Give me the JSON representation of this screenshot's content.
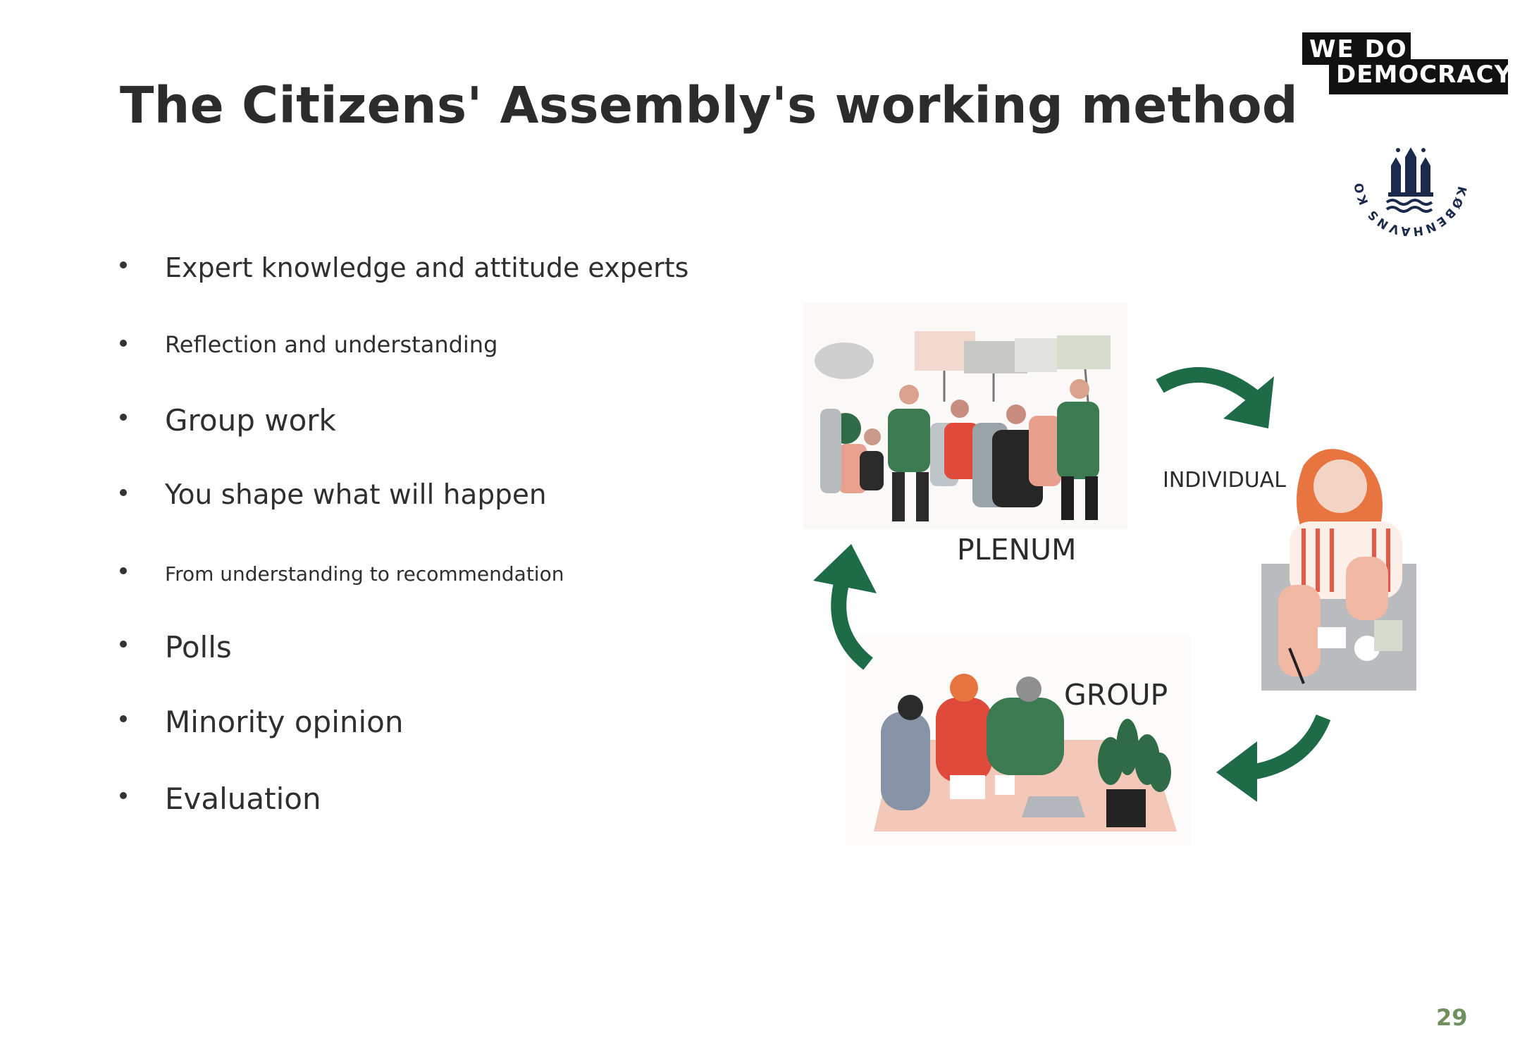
{
  "slide": {
    "title": "The Citizens' Assembly's working method",
    "page_number": "29"
  },
  "bullets": [
    "Expert knowledge and attitude experts",
    "Reflection and understanding",
    "Group work",
    "You shape what will happen",
    "From understanding to recommendation",
    "Polls",
    "Minority opinion",
    "Evaluation"
  ],
  "logos": {
    "we_do_democracy_line1": "WE  DO",
    "we_do_democracy_line2": "DEMOCRACY",
    "seal_text": "KØBENHAVNS KOMMUNE"
  },
  "diagram": {
    "plenum_label": "PLENUM",
    "individual_label": "INDIVIDUAL",
    "group_label": "GROUP"
  },
  "colors": {
    "arrow": "#1e6b47",
    "title": "#2c2c2c",
    "page_number": "#6e8f5e",
    "navy": "#1b2a4a"
  }
}
